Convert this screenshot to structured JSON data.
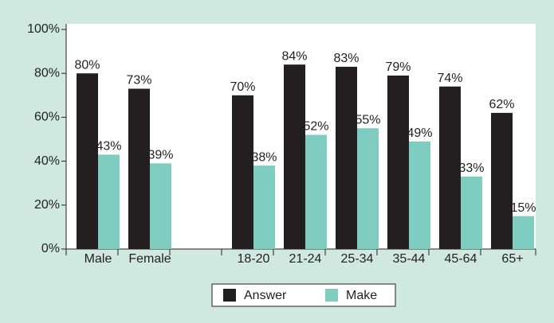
{
  "chart_data": {
    "type": "bar",
    "categories": [
      "Male",
      "Female",
      null,
      "18-20",
      "21-24",
      "25-34",
      "35-44",
      "45-64",
      "65+"
    ],
    "series": [
      {
        "name": "Answer",
        "color": "#231f20",
        "values": [
          80,
          73,
          null,
          70,
          84,
          83,
          79,
          74,
          62
        ],
        "value_labels": [
          "80%",
          "73%",
          null,
          "70%",
          "84%",
          "83%",
          "79%",
          "74%",
          "62%"
        ]
      },
      {
        "name": "Make",
        "color": "#7fcdc0",
        "values": [
          43,
          39,
          null,
          38,
          52,
          55,
          49,
          33,
          15
        ],
        "value_labels": [
          "43%",
          "39%",
          null,
          "38%",
          "52%",
          "55%",
          "49%",
          "33%",
          "15%"
        ]
      }
    ],
    "ylim": [
      0,
      100
    ],
    "yticks": [
      {
        "value": 0,
        "label": "0%"
      },
      {
        "value": 20,
        "label": "20%"
      },
      {
        "value": 40,
        "label": "40%"
      },
      {
        "value": 60,
        "label": "60%"
      },
      {
        "value": 80,
        "label": "80%"
      },
      {
        "value": 100,
        "label": "100%"
      }
    ],
    "grid": false,
    "legend": "bottom"
  }
}
